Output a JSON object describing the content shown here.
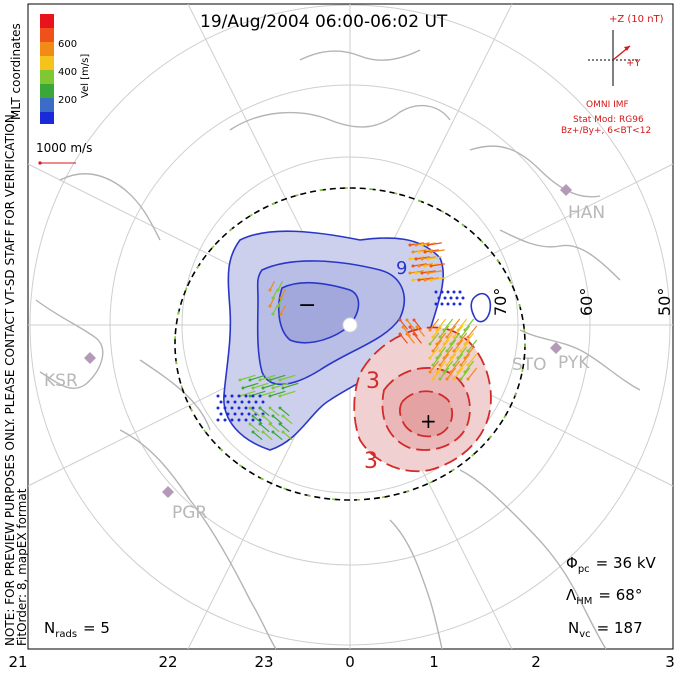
{
  "title": "19/Aug/2004 06:00-06:02 UT",
  "coordinates_label": "MLT coordinates",
  "colorbar": {
    "label": "Vel [m/s]",
    "ticks": [
      "600",
      "400",
      "200"
    ],
    "colors": [
      "#e8141c",
      "#f0501a",
      "#f28a18",
      "#f6c21c",
      "#80c832",
      "#3aa838",
      "#3a6cc8",
      "#1a2ad8"
    ]
  },
  "scale_vector": {
    "label": "1000 m/s",
    "color": "#d41818"
  },
  "imf": {
    "z_label": "+Z (10 nT)",
    "y_label": "+Y",
    "source": "OMNI IMF",
    "model": "Stat Mod: RG96",
    "condition": "Bz+/By+, 6<BT<12",
    "color": "#d41818"
  },
  "latitude_labels": [
    "70°",
    "60°",
    "50°"
  ],
  "station_labels": {
    "han": "HAN",
    "pyk": "PYK",
    "sto": "STO",
    "ksr": "KSR",
    "pgr": "PGR"
  },
  "contour_labels": {
    "neg_sign": "−",
    "pos_sign": "+",
    "neg_value": "9",
    "pos_value_1": "3",
    "pos_value_2": "3"
  },
  "side_notes": {
    "preview": "NOTE: FOR PREVIEW PURPOSES ONLY. PLEASE CONTACT VT-SD STAFF FOR VERIFICATION.",
    "fit": "FitOrder: 8, mapEX format"
  },
  "stats": {
    "phi_pc_symbol": "Φ",
    "phi_pc_sub": "pc",
    "phi_pc_value": "= 36 kV",
    "lambda_hm_symbol": "Λ",
    "lambda_hm_sub": "HM",
    "lambda_hm_value": "= 68°",
    "n_vc_symbol": "N",
    "n_vc_sub": "vc",
    "n_vc_value": "= 187",
    "n_rads_symbol": "N",
    "n_rads_sub": "rads",
    "n_rads_value": "= 5"
  },
  "mlt_axis_labels": [
    "21",
    "22",
    "23",
    "0",
    "1",
    "2",
    "3"
  ],
  "potential_colors": {
    "negative": "#2a36c8",
    "positive": "#d42a2a",
    "boundary": "#000000"
  }
}
